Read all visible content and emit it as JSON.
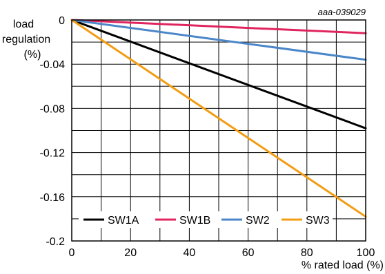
{
  "chart_data": {
    "type": "line",
    "figure_id": "aaa-039029",
    "xlabel": "% rated load (%)",
    "ylabel_lines": [
      "load",
      "regulation",
      "(%)"
    ],
    "xlim": [
      0,
      100
    ],
    "ylim": [
      -0.2,
      0
    ],
    "x_ticks": [
      "0",
      "20",
      "40",
      "60",
      "80",
      "100"
    ],
    "y_ticks": [
      "0",
      "-0.04",
      "-0.08",
      "-0.12",
      "-0.16",
      "-0.2"
    ],
    "grid": true,
    "legend_position": "bottom",
    "series": [
      {
        "name": "SW1A",
        "color": "#000000",
        "x": [
          0,
          100
        ],
        "y": [
          0,
          -0.098
        ]
      },
      {
        "name": "SW1B",
        "color": "#e0245e",
        "x": [
          0,
          100
        ],
        "y": [
          0,
          -0.012
        ]
      },
      {
        "name": "SW2",
        "color": "#4a86c8",
        "x": [
          0,
          100
        ],
        "y": [
          0,
          -0.036
        ]
      },
      {
        "name": "SW3",
        "color": "#f39c12",
        "x": [
          0,
          100
        ],
        "y": [
          0,
          -0.178
        ]
      }
    ]
  }
}
